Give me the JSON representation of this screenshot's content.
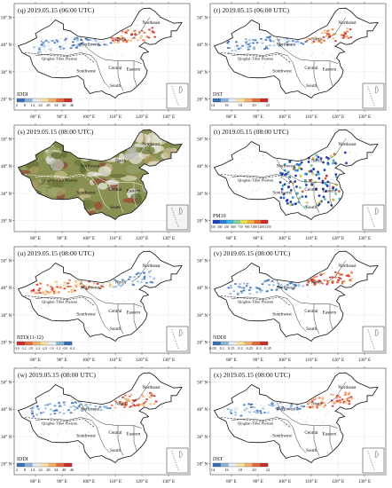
{
  "panels": [
    {
      "id": "q",
      "date": "(q) 2019.05.15 (06:00 UTC)",
      "kind": "dust",
      "index_label": "IDDI",
      "colorbar_ticks": [
        "2",
        "8",
        "14",
        "22",
        "28",
        "34",
        "40",
        "46"
      ],
      "palette": [
        "#3b6fb6",
        "#8fb5d9",
        "#e8eef3",
        "#fbe3a5",
        "#f6b26b",
        "#ea6a3f",
        "#c9302c"
      ]
    },
    {
      "id": "r",
      "date": "(r) 2019.05.15 (06:00 UTC)",
      "kind": "dust",
      "index_label": "DST",
      "colorbar_ticks": [
        "14",
        "16",
        "18",
        "20",
        "22"
      ],
      "palette": [
        "#3b6fb6",
        "#8fb5d9",
        "#e8eef3",
        "#fbe3a5",
        "#f6b26b",
        "#ea6a3f",
        "#c9302c"
      ]
    },
    {
      "id": "s",
      "date": "(s) 2019.05.15 (08:00 UTC)",
      "kind": "truecolor",
      "index_label": "",
      "colorbar_ticks": [],
      "palette": []
    },
    {
      "id": "t",
      "date": "(t) 2019.05.15 (08:00 UTC)",
      "kind": "pm10",
      "index_label": "PM10",
      "colorbar_ticks": [
        "150",
        "300",
        "450",
        "600",
        "750",
        "900",
        "1050",
        "1200",
        "1350"
      ],
      "palette": [
        "#1f3fbf",
        "#2a7fd6",
        "#38b6e6",
        "#7fd3a0",
        "#e8e84a",
        "#f3b43a",
        "#ef6d2d",
        "#d7282a"
      ]
    },
    {
      "id": "u",
      "date": "(u) 2019.05.15 (08:00 UTC)",
      "kind": "btd",
      "index_label": "BTD(11-12)",
      "colorbar_ticks": [
        "-3.6",
        "-3.2",
        "-2.8",
        "-2.4",
        "-2.0",
        "-1.6",
        "-1.2",
        "-0.8",
        "-0.4"
      ],
      "palette": [
        "#c9302c",
        "#ea6a3f",
        "#f6b26b",
        "#fbe3a5",
        "#e8eef3",
        "#8fb5d9",
        "#3b6fb6"
      ]
    },
    {
      "id": "v",
      "date": "(v) 2019.05.15 (08:00 UTC)",
      "kind": "dust",
      "index_label": "NDDI",
      "colorbar_ticks": [
        "0.05",
        "0.1",
        "0.15",
        "0.2",
        "0.25",
        "0.3",
        "0.35"
      ],
      "palette": [
        "#3b6fb6",
        "#8fb5d9",
        "#e8eef3",
        "#fbe3a5",
        "#f6b26b",
        "#ea6a3f",
        "#c9302c"
      ]
    },
    {
      "id": "w",
      "date": "(w) 2019.05.15 (08:00 UTC)",
      "kind": "dust",
      "index_label": "IDDI",
      "colorbar_ticks": [
        "2",
        "8",
        "14",
        "22",
        "28",
        "34",
        "40",
        "46"
      ],
      "palette": [
        "#3b6fb6",
        "#8fb5d9",
        "#e8eef3",
        "#fbe3a5",
        "#f6b26b",
        "#ea6a3f",
        "#c9302c"
      ]
    },
    {
      "id": "x",
      "date": "(x) 2019.05.15 (08:00 UTC)",
      "kind": "dust",
      "index_label": "DST",
      "colorbar_ticks": [
        "14",
        "16",
        "18",
        "20",
        "22"
      ],
      "palette": [
        "#3b6fb6",
        "#8fb5d9",
        "#e8eef3",
        "#fbe3a5",
        "#f6b26b",
        "#ea6a3f",
        "#c9302c"
      ]
    }
  ],
  "regions": [
    "Northeast",
    "North",
    "Northwest",
    "Qinghai-Tibet Plateau",
    "Central",
    "Southwest",
    "Eastern",
    "South"
  ],
  "lon_labels": [
    "80° E",
    "90° E",
    "100° E",
    "110° E",
    "120° E",
    "130° E"
  ],
  "lat_labels": [
    "50° N",
    "40° N",
    "30° N",
    "20° N"
  ]
}
